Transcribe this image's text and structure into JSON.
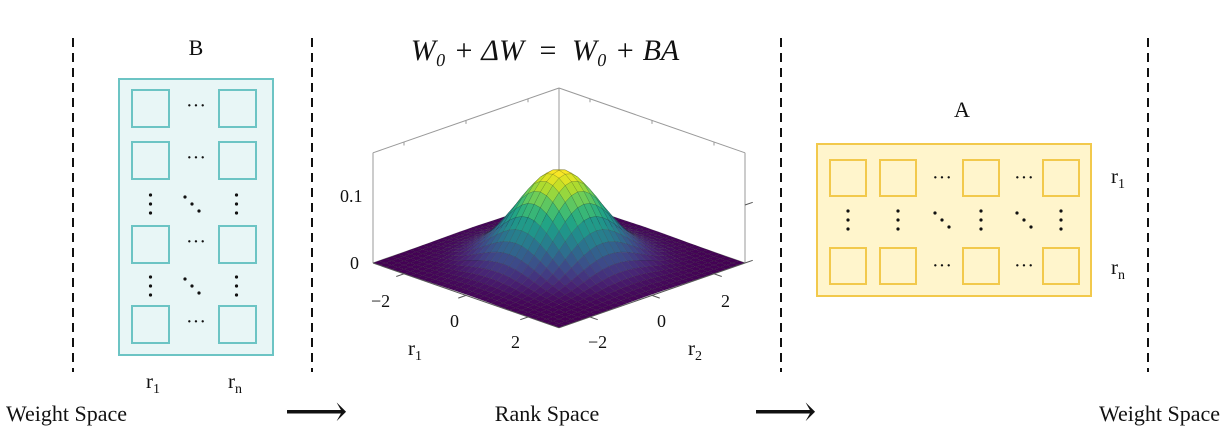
{
  "equation": {
    "lhs": "W₀ + ΔW",
    "eq": "=",
    "rhs": "W₀ + BA"
  },
  "matrix_b": {
    "title": "B",
    "col_labels": [
      {
        "main": "r",
        "sub": "1"
      },
      {
        "main": "r",
        "sub": "n"
      }
    ],
    "fill": "#e8f6f6",
    "stroke": "#6cc4c4"
  },
  "matrix_a": {
    "title": "A",
    "row_labels": [
      {
        "main": "r",
        "sub": "1"
      },
      {
        "main": "r",
        "sub": "n"
      }
    ],
    "fill": "#fff5cc",
    "stroke": "#f2c94c"
  },
  "plot": {
    "z_ticks": [
      "0.1",
      "0"
    ],
    "x_ticks": [
      "−2",
      "0",
      "2"
    ],
    "y_ticks": [
      "−2",
      "0",
      "2"
    ],
    "x_label": {
      "main": "r",
      "sub": "1"
    },
    "y_label": {
      "main": "r",
      "sub": "2"
    },
    "colormap": "viridis"
  },
  "ellipsis": "···",
  "arrow_glyph": "⟶",
  "bottom": {
    "left": "Weight Space",
    "middle": "Rank Space",
    "right": "Weight Space"
  }
}
